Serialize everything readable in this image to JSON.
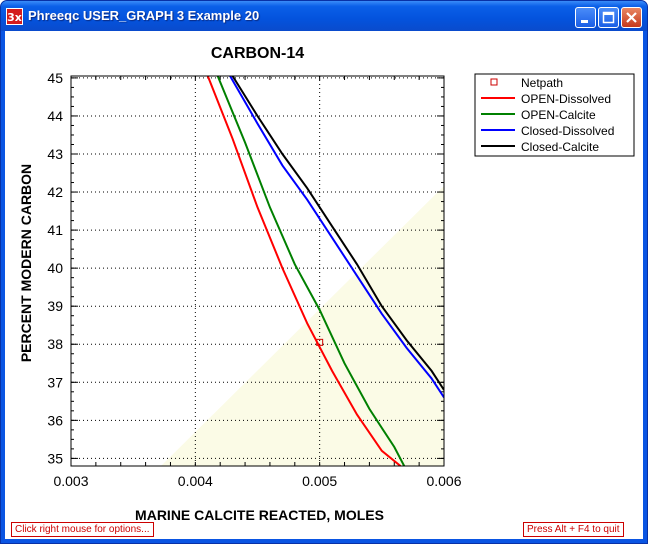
{
  "window": {
    "app_icon_label": "3x",
    "title": "Phreeqc USER_GRAPH 3 Example 20"
  },
  "buttons": {
    "minimize": "minimize",
    "maximize": "maximize",
    "close": "close"
  },
  "status": {
    "left_hint": "Click right mouse for options...",
    "right_hint": "Press Alt + F4 to quit"
  },
  "colors": {
    "netpath": "#cc0000",
    "open_dissolved": "#ff0000",
    "open_calcite": "#008000",
    "closed_dissolved": "#0000ff",
    "closed_calcite": "#000000",
    "plot_background_tint": "#fbfbe6"
  },
  "chart_data": {
    "type": "line",
    "title": "CARBON-14",
    "xlabel": "MARINE CALCITE REACTED, MOLES",
    "ylabel": "PERCENT MODERN CARBON",
    "xlim": [
      0.003,
      0.006
    ],
    "ylim": [
      34.8,
      45.05
    ],
    "x_ticks": [
      "0.003",
      "0.004",
      "0.005",
      "0.006"
    ],
    "y_ticks": [
      "35",
      "36",
      "37",
      "38",
      "39",
      "40",
      "41",
      "42",
      "43",
      "44",
      "45"
    ],
    "grid": true,
    "legend_position": "right",
    "series": [
      {
        "name": "Netpath",
        "marker": "square",
        "points": [
          [
            0.005,
            38.05
          ]
        ]
      },
      {
        "name": "OPEN-Dissolved",
        "points": [
          [
            0.0041,
            45.05
          ],
          [
            0.0043,
            43.4
          ],
          [
            0.0045,
            41.6
          ],
          [
            0.0047,
            40.0
          ],
          [
            0.0049,
            38.55
          ],
          [
            0.0051,
            37.3
          ],
          [
            0.0053,
            36.15
          ],
          [
            0.0055,
            35.2
          ],
          [
            0.00565,
            34.8
          ]
        ]
      },
      {
        "name": "OPEN-Calcite",
        "points": [
          [
            0.00418,
            45.05
          ],
          [
            0.0044,
            43.3
          ],
          [
            0.0046,
            41.6
          ],
          [
            0.0048,
            40.1
          ],
          [
            0.005,
            38.9
          ],
          [
            0.0052,
            37.5
          ],
          [
            0.0054,
            36.3
          ],
          [
            0.0056,
            35.3
          ],
          [
            0.00568,
            34.8
          ]
        ]
      },
      {
        "name": "Closed-Dissolved",
        "points": [
          [
            0.00428,
            45.05
          ],
          [
            0.0045,
            43.8
          ],
          [
            0.0047,
            42.7
          ],
          [
            0.0049,
            41.8
          ],
          [
            0.0051,
            40.8
          ],
          [
            0.0053,
            39.8
          ],
          [
            0.0055,
            38.8
          ],
          [
            0.0057,
            37.9
          ],
          [
            0.0059,
            37.1
          ],
          [
            0.006,
            36.6
          ]
        ]
      },
      {
        "name": "Closed-Calcite",
        "points": [
          [
            0.0043,
            45.05
          ],
          [
            0.0045,
            44.0
          ],
          [
            0.0047,
            43.0
          ],
          [
            0.0049,
            42.1
          ],
          [
            0.0051,
            41.1
          ],
          [
            0.0053,
            40.1
          ],
          [
            0.0055,
            39.0
          ],
          [
            0.0057,
            38.1
          ],
          [
            0.0059,
            37.3
          ],
          [
            0.006,
            36.8
          ]
        ]
      }
    ]
  }
}
